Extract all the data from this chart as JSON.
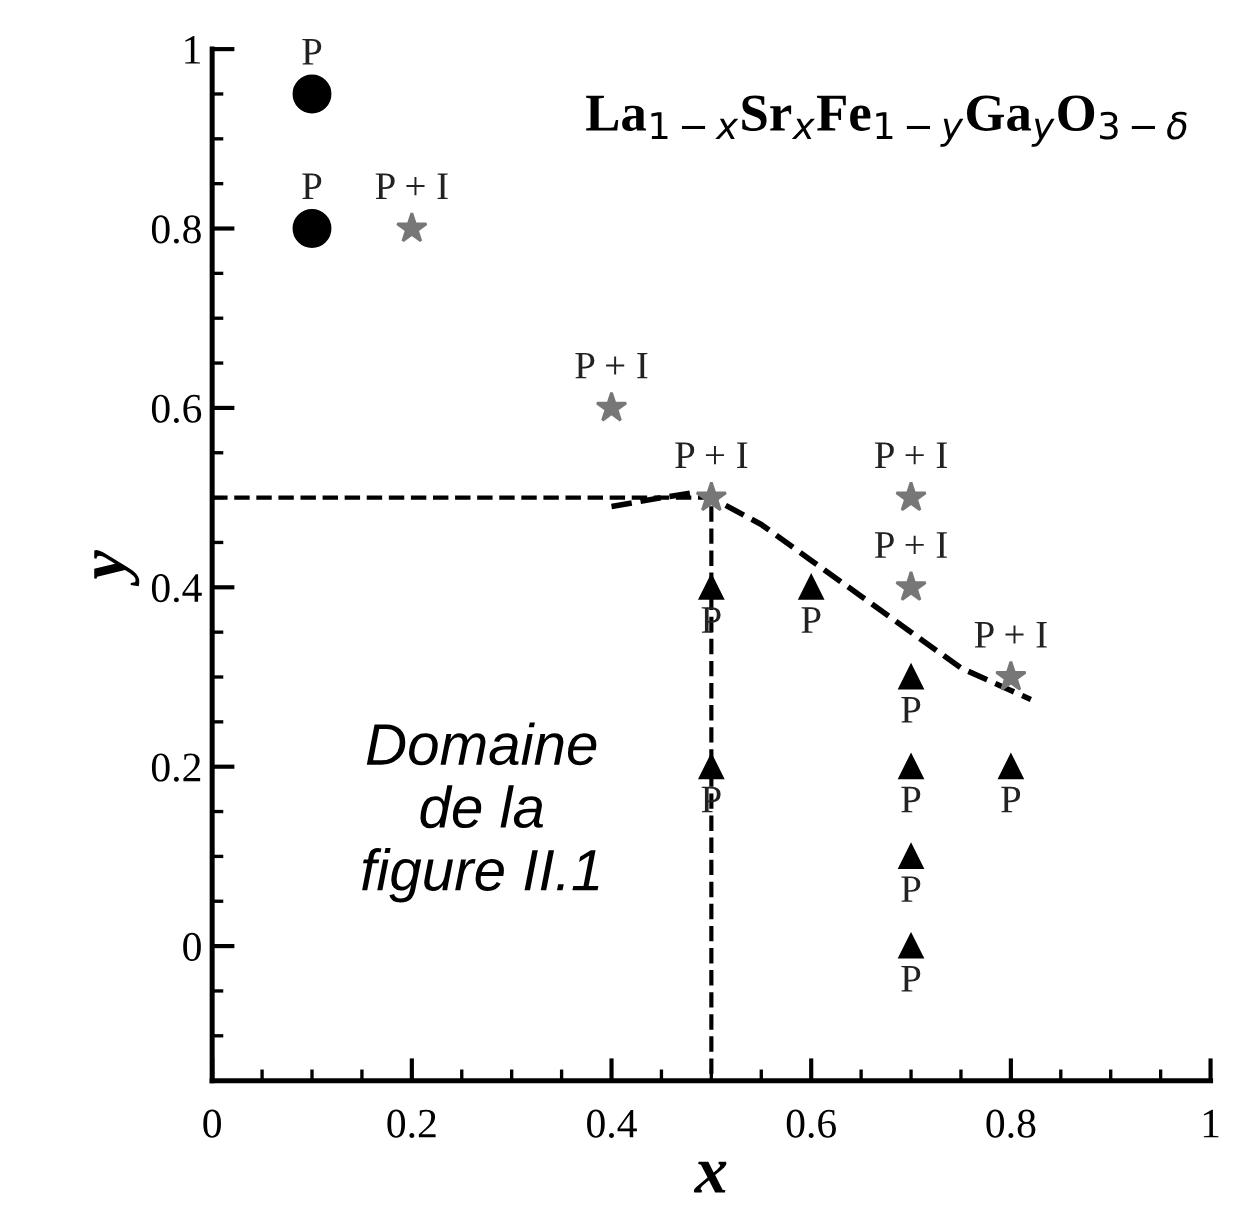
{
  "chart_data": {
    "type": "scatter",
    "title": "La$_{1−x}$Sr$_{x}$Fe$_{1−y}$Ga$_{y}$O$_{3−δ}$",
    "xlabel": "x",
    "ylabel": "y",
    "xlim": [
      0,
      1
    ],
    "ylim": [
      -0.15,
      1
    ],
    "xticks": [
      0,
      0.2,
      0.4,
      0.6,
      0.8,
      1
    ],
    "yticks": [
      0,
      0.2,
      0.4,
      0.6,
      0.8,
      1
    ],
    "grid": false,
    "legend": false,
    "series": [
      {
        "marker": "circle",
        "color": "#000000",
        "x": [
          0.1,
          0.1
        ],
        "values": [
          0.95,
          0.8
        ]
      },
      {
        "marker": "star",
        "color": "#777777",
        "x": [
          0.2,
          0.4,
          0.5,
          0.7,
          0.7,
          0.8
        ],
        "values": [
          0.8,
          0.6,
          0.5,
          0.5,
          0.4,
          0.3
        ]
      },
      {
        "marker": "triangle",
        "color": "#000000",
        "x": [
          0.5,
          0.5,
          0.6,
          0.7,
          0.7,
          0.7,
          0.7,
          0.8
        ],
        "values": [
          0.4,
          0.2,
          0.4,
          0.3,
          0.2,
          0.1,
          0.0,
          0.2
        ]
      },
      {
        "type": "line",
        "line_style": "dashed",
        "color": "#000000",
        "x": [
          0.4,
          0.45,
          0.48,
          0.5,
          0.55,
          0.6,
          0.65,
          0.7,
          0.75,
          0.8,
          0.82
        ],
        "values": [
          0.49,
          0.5,
          0.505,
          0.5,
          0.47,
          0.43,
          0.39,
          0.35,
          0.31,
          0.285,
          0.275
        ]
      },
      {
        "type": "line",
        "line_style": "dashed",
        "color": "#000000",
        "x": [
          0,
          0.5,
          0.5
        ],
        "values": [
          0.5,
          0.5,
          -0.15
        ]
      }
    ],
    "annotations": [
      {
        "text": "P",
        "x": 0.1,
        "y": 0.95
      },
      {
        "text": "P",
        "x": 0.1,
        "y": 0.8
      },
      {
        "text": "P + I",
        "x": 0.2,
        "y": 0.8
      },
      {
        "text": "P + I",
        "x": 0.4,
        "y": 0.6
      },
      {
        "text": "P + I",
        "x": 0.5,
        "y": 0.5
      },
      {
        "text": "P + I",
        "x": 0.7,
        "y": 0.5
      },
      {
        "text": "P + I",
        "x": 0.7,
        "y": 0.4
      },
      {
        "text": "P + I",
        "x": 0.8,
        "y": 0.3
      },
      {
        "text": "P",
        "x": 0.5,
        "y": 0.4
      },
      {
        "text": "P",
        "x": 0.5,
        "y": 0.2
      },
      {
        "text": "P",
        "x": 0.6,
        "y": 0.4
      },
      {
        "text": "P",
        "x": 0.7,
        "y": 0.3
      },
      {
        "text": "P",
        "x": 0.7,
        "y": 0.2
      },
      {
        "text": "P",
        "x": 0.7,
        "y": 0.1
      },
      {
        "text": "P",
        "x": 0.7,
        "y": 0.0
      },
      {
        "text": "P",
        "x": 0.8,
        "y": 0.2
      },
      "Domaine\nde la\nfigure II.1"
    ]
  }
}
